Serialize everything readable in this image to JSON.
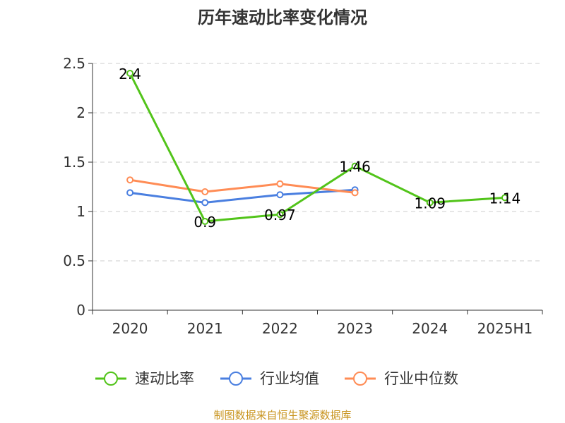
{
  "chart_data": {
    "type": "line",
    "title": "历年速动比率变化情况",
    "categories": [
      "2020",
      "2021",
      "2022",
      "2023",
      "2024",
      "2025H1"
    ],
    "ylim": [
      0,
      2.5
    ],
    "yticks": [
      "0",
      "0.5",
      "1",
      "1.5",
      "2",
      "2.5"
    ],
    "grid": true,
    "legend_position": "bottom",
    "series": [
      {
        "name": "速动比率",
        "color": "#52c41a",
        "values": [
          2.4,
          0.9,
          0.97,
          1.46,
          1.09,
          1.14
        ],
        "labels": [
          "2.4",
          "0.9",
          "0.97",
          "1.46",
          "1.09",
          "1.14"
        ]
      },
      {
        "name": "行业均值",
        "color": "#4a7fe0",
        "values": [
          1.19,
          1.09,
          1.17,
          1.22,
          null,
          null
        ]
      },
      {
        "name": "行业中位数",
        "color": "#ff8c55",
        "values": [
          1.32,
          1.2,
          1.28,
          1.19,
          null,
          null
        ]
      }
    ]
  },
  "footer": "制图数据来自恒生聚源数据库"
}
